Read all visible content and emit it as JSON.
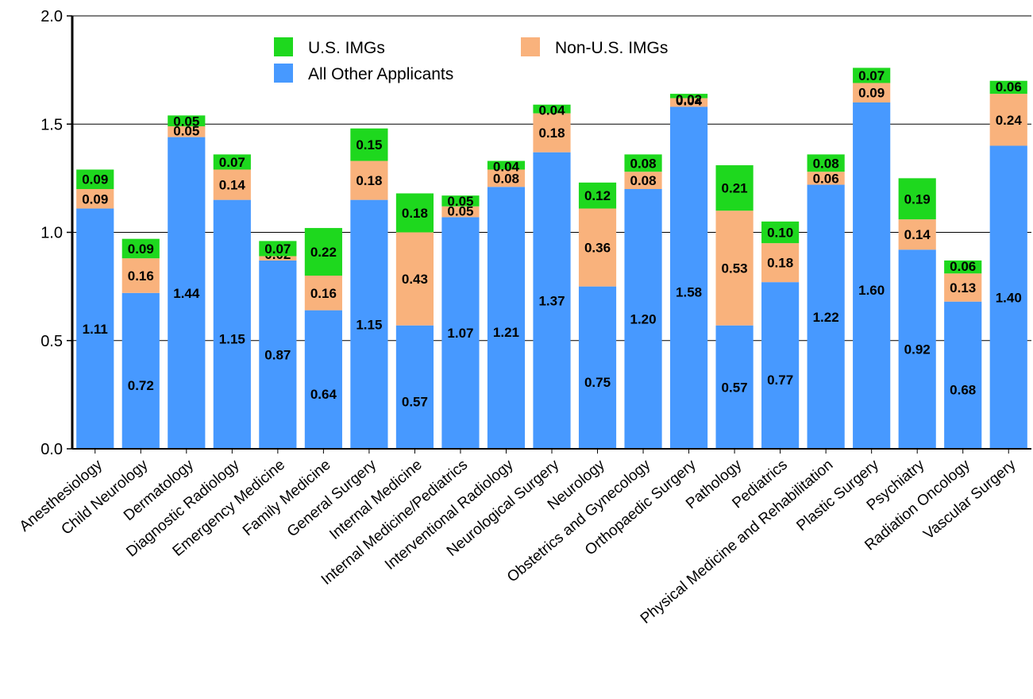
{
  "chart_data": {
    "type": "bar",
    "stacked": true,
    "title": "",
    "xlabel": "",
    "ylabel": "",
    "ylim": [
      0,
      2.0
    ],
    "yticks": [
      "0.0",
      "0.5",
      "1.0",
      "1.5",
      "2.0"
    ],
    "grid": "horizontal",
    "legend_position": "top-left",
    "categories": [
      "Anesthesiology",
      "Child Neurology",
      "Dermatology",
      "Diagnostic Radiology",
      "Emergency Medicine",
      "Family Medicine",
      "General Surgery",
      "Internal Medicine",
      "Internal Medicine/Pediatrics",
      "Interventional Radiology",
      "Neurological Surgery",
      "Neurology",
      "Obstetrics and Gynecology",
      "Orthopaedic Surgery",
      "Pathology",
      "Pediatrics",
      "Physical Medicine and Rehabilitation",
      "Plastic Surgery",
      "Psychiatry",
      "Radiation Oncology",
      "Vascular Surgery"
    ],
    "series": [
      {
        "name": "All Other Applicants",
        "color": "#4799ff",
        "values": [
          1.11,
          0.72,
          1.44,
          1.15,
          0.87,
          0.64,
          1.15,
          0.57,
          1.07,
          1.21,
          1.37,
          0.75,
          1.2,
          1.58,
          0.57,
          0.77,
          1.22,
          1.6,
          0.92,
          0.68,
          1.4
        ],
        "labels": [
          "1.11",
          "0.72",
          "1.44",
          "1.15",
          "0.87",
          "0.64",
          "1.15",
          "0.57",
          "1.07",
          "1.21",
          "1.37",
          "0.75",
          "1.20",
          "1.58",
          "0.57",
          "0.77",
          "1.22",
          "1.60",
          "0.92",
          "0.68",
          "1.40"
        ]
      },
      {
        "name": "Non-U.S. IMGs",
        "color": "#f9b27c",
        "values": [
          0.09,
          0.16,
          0.05,
          0.14,
          0.02,
          0.16,
          0.18,
          0.43,
          0.05,
          0.08,
          0.18,
          0.36,
          0.08,
          0.04,
          0.53,
          0.18,
          0.06,
          0.09,
          0.14,
          0.13,
          0.24
        ],
        "labels": [
          "0.09",
          "0.16",
          "0.05",
          "0.14",
          "0.02",
          "0.16",
          "0.18",
          "0.43",
          "0.05",
          "0.08",
          "0.18",
          "0.36",
          "0.08",
          "0.04",
          "0.53",
          "0.18",
          "0.06",
          "0.09",
          "0.14",
          "0.13",
          "0.24"
        ]
      },
      {
        "name": "U.S. IMGs",
        "color": "#1ed81e",
        "values": [
          0.09,
          0.09,
          0.05,
          0.07,
          0.07,
          0.22,
          0.15,
          0.18,
          0.05,
          0.04,
          0.04,
          0.12,
          0.08,
          0.02,
          0.21,
          0.1,
          0.08,
          0.07,
          0.19,
          0.06,
          0.06
        ],
        "labels": [
          "0.09",
          "0.09",
          "0.05",
          "0.07",
          "0.07",
          "0.22",
          "0.15",
          "0.18",
          "0.05",
          "0.04",
          "0.04",
          "0.12",
          "0.08",
          "0.02",
          "0.21",
          "0.10",
          "0.08",
          "0.07",
          "0.19",
          "0.06",
          "0.06"
        ]
      }
    ],
    "legend": [
      {
        "name": "U.S. IMGs",
        "color": "#1ed81e"
      },
      {
        "name": "Non-U.S. IMGs",
        "color": "#f9b27c"
      },
      {
        "name": "All Other Applicants",
        "color": "#4799ff"
      }
    ]
  }
}
